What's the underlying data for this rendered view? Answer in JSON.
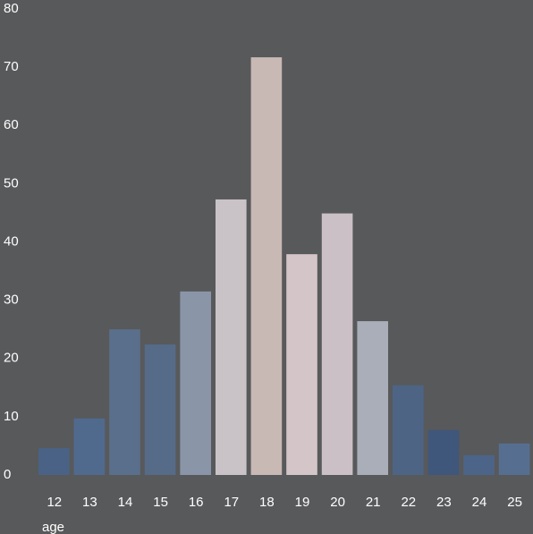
{
  "chart_data": {
    "type": "bar",
    "x_label": "age",
    "categories": [
      "12",
      "13",
      "14",
      "15",
      "16",
      "17",
      "18",
      "19",
      "20",
      "21",
      "22",
      "23",
      "24",
      "25"
    ],
    "values": [
      4.6,
      9.7,
      25,
      22.4,
      31.5,
      47.3,
      71.7,
      37.9,
      44.9,
      26.4,
      15.4,
      7.7,
      3.4,
      5.4
    ],
    "colors": [
      "#4a6285",
      "#506a8e",
      "#5a6f8c",
      "#566b88",
      "#8a96a8",
      "#c9c3c8",
      "#c8b9b5",
      "#d4c5c8",
      "#cbc0c5",
      "#a9aeb8",
      "#4d6485",
      "#3f577a",
      "#4c6487",
      "#566f90"
    ],
    "ylim": [
      0,
      80
    ],
    "yticks": [
      0,
      10,
      20,
      30,
      40,
      50,
      60,
      70,
      80
    ],
    "grid": false
  }
}
